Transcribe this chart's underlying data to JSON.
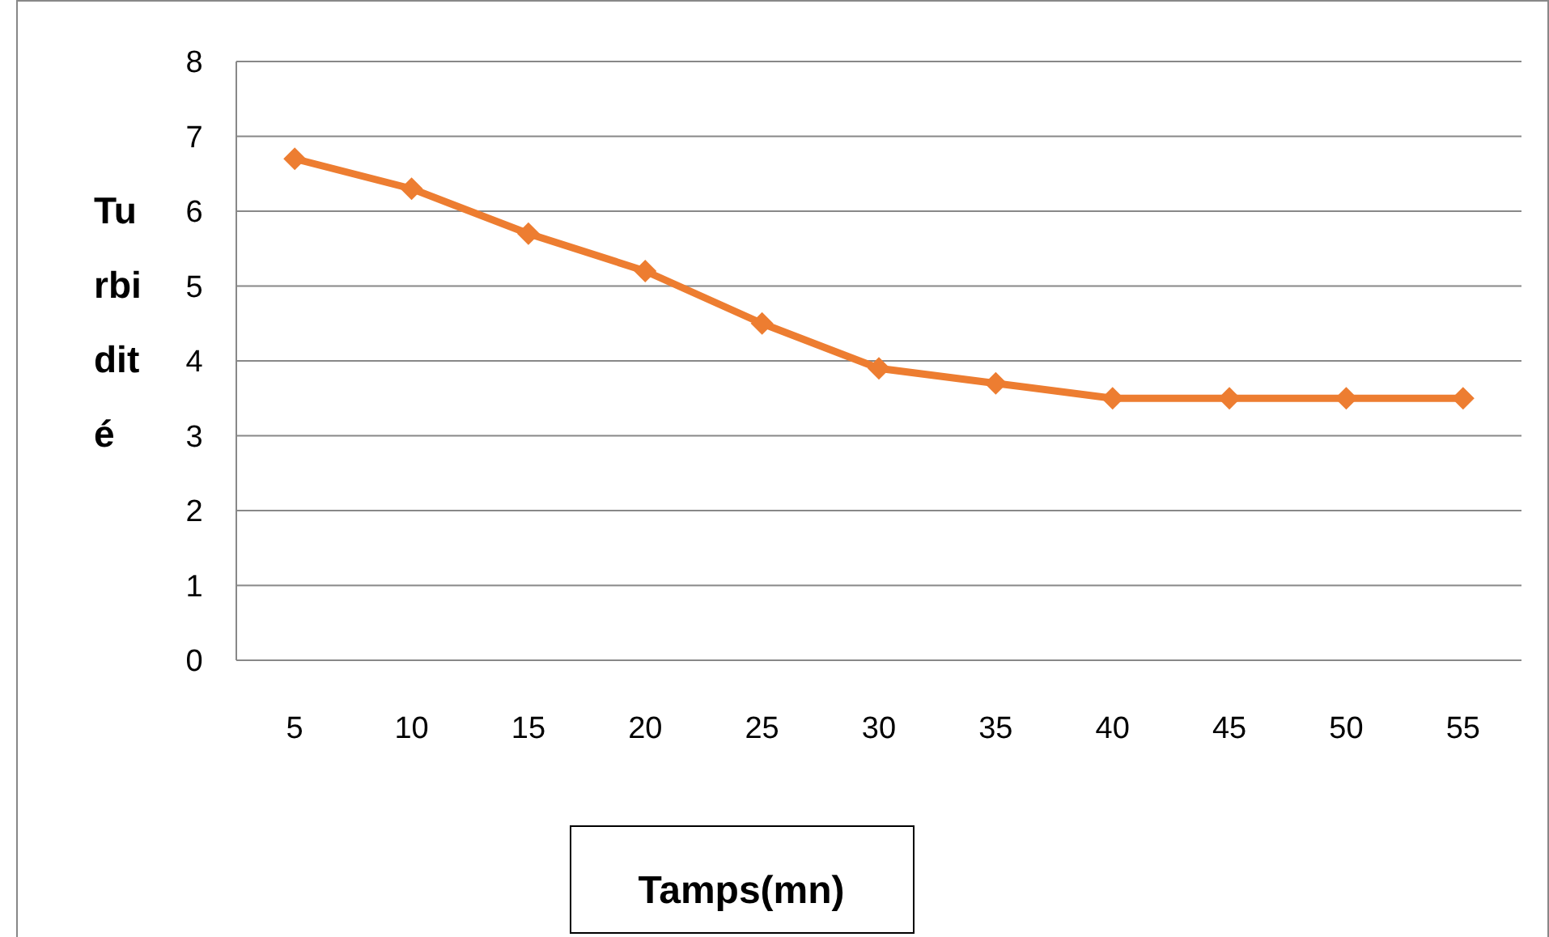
{
  "chart_data": {
    "type": "line",
    "xlabel": "Tamps(mn)",
    "ylabel": "Turbidité",
    "categories": [
      "5",
      "10",
      "15",
      "20",
      "25",
      "30",
      "35",
      "40",
      "45",
      "50",
      "55"
    ],
    "series": [
      {
        "color": "#ed7d31",
        "values": [
          6.7,
          6.3,
          5.7,
          5.2,
          4.5,
          3.9,
          3.7,
          3.5,
          3.5,
          3.5,
          3.5
        ]
      }
    ],
    "ylim": [
      0,
      8
    ],
    "yticks": [
      0,
      1,
      2,
      3,
      4,
      5,
      6,
      7,
      8
    ],
    "grid": "y",
    "marker": "diamond",
    "line_style": "solid"
  }
}
